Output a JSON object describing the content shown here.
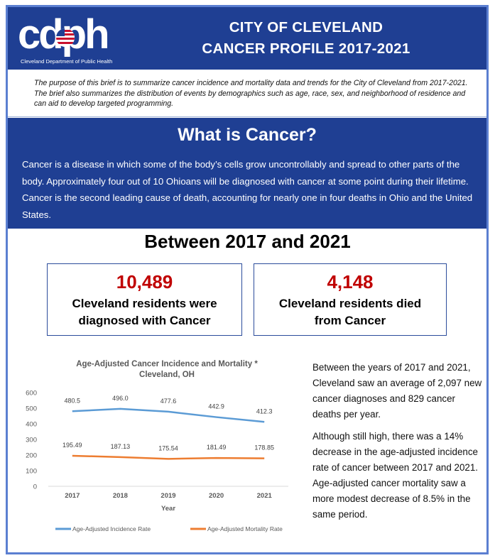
{
  "header": {
    "logo_text": "cdph",
    "logo_subtitle": "Cleveland Department of Public Health",
    "title_line1": "CITY OF CLEVELAND",
    "title_line2": "CANCER PROFILE 2017-2021"
  },
  "intro": "The purpose of this brief is to summarize cancer incidence and mortality data and trends for the City of Cleveland from 2017-2021.  The brief also summarizes the distribution of events by demographics such as age, race, sex, and neighborhood of residence and can aid to develop targeted programming.",
  "what_is_cancer": {
    "heading": "What is Cancer?",
    "body": "Cancer is a disease in which some of the body’s cells grow uncontrollably and spread to other parts of the body. Approximately four out of 10 Ohioans will be diagnosed with cancer at some point during their lifetime. Cancer is the second leading cause of death, accounting for nearly one in four deaths in Ohio and the United States."
  },
  "between_heading": "Between 2017 and 2021",
  "stats": [
    {
      "number": "10,489",
      "line1": "Cleveland residents were",
      "line2": "diagnosed with Cancer"
    },
    {
      "number": "4,148",
      "line1": "Cleveland residents died",
      "line2": "from Cancer"
    }
  ],
  "colors": {
    "header_blue": "#1f3f93",
    "stat_red": "#c00000",
    "incidence_line": "#5b9bd5",
    "mortality_line": "#ed7d31"
  },
  "chart_data": {
    "type": "line",
    "title_line1": "Age-Adjusted Cancer Incidence and Mortality *",
    "title_line2": "Cleveland, OH",
    "xlabel": "Year",
    "ylabel": "",
    "x": [
      "2017",
      "2018",
      "2019",
      "2020",
      "2021"
    ],
    "ylim": [
      0,
      600
    ],
    "yticks": [
      "0",
      "100",
      "200",
      "300",
      "400",
      "500",
      "600"
    ],
    "grid": false,
    "legend_position": "bottom",
    "series": [
      {
        "name": "Age-Adjusted Incidence Rate",
        "values": [
          480.5,
          496.0,
          477.6,
          442.9,
          412.3
        ],
        "labels": [
          "480.5",
          "496.0",
          "477.6",
          "442.9",
          "412.3"
        ]
      },
      {
        "name": "Age-Adjusted Mortality Rate",
        "values": [
          195.49,
          187.13,
          175.54,
          181.49,
          178.85
        ],
        "labels": [
          "195.49",
          "187.13",
          "175.54",
          "181.49",
          "178.85"
        ]
      }
    ]
  },
  "side_text": {
    "para1": "Between the years of 2017 and 2021, Cleveland saw an average of 2,097 new cancer diagnoses and 829 cancer deaths per year.",
    "para2": "Although still high, there was a 14% decrease in the age-adjusted incidence rate of cancer between 2017 and 2021.  Age-adjusted cancer mortality saw a more modest decrease of 8.5% in the same period."
  }
}
